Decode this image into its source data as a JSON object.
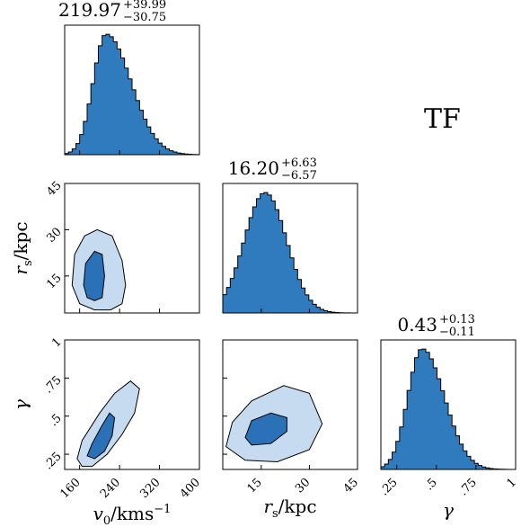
{
  "chart_data": {
    "type": "corner",
    "fill_color": "#2f7bbd",
    "contour_colors": {
      "inner": "#2b71b7",
      "outer": "#c6dbef",
      "line": "#000000"
    },
    "panel_label": "TF",
    "parameters": [
      {
        "key": "v0",
        "label_main": "v",
        "label_sub": "0",
        "label_rest": "/kms",
        "label_sup": "−1",
        "range": [
          130,
          400
        ],
        "ticks": [
          160,
          240,
          320,
          400
        ],
        "tick_labels": [
          "160",
          "240",
          "320",
          "400"
        ]
      },
      {
        "key": "rs",
        "label_main": "r",
        "label_sub": "s",
        "label_rest": "/kpc",
        "range": [
          3,
          45
        ],
        "ticks": [
          15,
          30,
          45
        ],
        "tick_labels": [
          "15",
          "30",
          "45"
        ]
      },
      {
        "key": "gamma",
        "label_main": "γ",
        "range": [
          0.15,
          1.0
        ],
        "ticks": [
          0.25,
          0.5,
          0.75,
          1.0
        ],
        "tick_labels": [
          ".25",
          ".5",
          ".75",
          "1"
        ]
      }
    ],
    "titles": [
      {
        "value": "219.97",
        "plus": "+39.99",
        "minus": "−30.75"
      },
      {
        "value": "16.20",
        "plus": "+6.63",
        "minus": "−6.57"
      },
      {
        "value": "0.43",
        "plus": "+0.13",
        "minus": "−0.11"
      }
    ],
    "histograms": [
      {
        "param": "v0",
        "mode": 213,
        "sigma_left": 26,
        "sigma_right": 50,
        "bins": 36
      },
      {
        "param": "rs",
        "mode": 16.2,
        "sigma_left": 6.5,
        "sigma_right": 6.7,
        "bins": 36
      },
      {
        "param": "gamma",
        "mode": 0.41,
        "sigma_left": 0.09,
        "sigma_right": 0.14,
        "bins": 36
      }
    ],
    "contours_2d": [
      {
        "x": "v0",
        "y": "rs",
        "outer": [
          [
            145,
            12
          ],
          [
            150,
            22
          ],
          [
            170,
            28
          ],
          [
            195,
            30
          ],
          [
            225,
            28
          ],
          [
            245,
            20
          ],
          [
            252,
            12
          ],
          [
            245,
            6
          ],
          [
            222,
            4
          ],
          [
            190,
            4
          ],
          [
            160,
            6
          ]
        ],
        "inner": [
          [
            168,
            12
          ],
          [
            172,
            19
          ],
          [
            190,
            23
          ],
          [
            205,
            22
          ],
          [
            210,
            15
          ],
          [
            205,
            8
          ],
          [
            190,
            7
          ],
          [
            175,
            8
          ]
        ]
      },
      {
        "x": "v0",
        "y": "gamma",
        "outer": [
          [
            155,
            0.22
          ],
          [
            165,
            0.34
          ],
          [
            200,
            0.52
          ],
          [
            230,
            0.65
          ],
          [
            262,
            0.73
          ],
          [
            280,
            0.68
          ],
          [
            270,
            0.52
          ],
          [
            245,
            0.38
          ],
          [
            215,
            0.25
          ],
          [
            185,
            0.17
          ],
          [
            165,
            0.17
          ]
        ],
        "inner": [
          [
            175,
            0.24
          ],
          [
            185,
            0.32
          ],
          [
            205,
            0.44
          ],
          [
            220,
            0.52
          ],
          [
            230,
            0.49
          ],
          [
            225,
            0.37
          ],
          [
            210,
            0.27
          ],
          [
            190,
            0.22
          ]
        ]
      },
      {
        "x": "rs",
        "y": "gamma",
        "outer": [
          [
            4,
            0.3
          ],
          [
            6,
            0.46
          ],
          [
            12,
            0.6
          ],
          [
            22,
            0.7
          ],
          [
            30,
            0.65
          ],
          [
            34,
            0.45
          ],
          [
            30,
            0.28
          ],
          [
            20,
            0.2
          ],
          [
            10,
            0.21
          ]
        ],
        "inner": [
          [
            10,
            0.36
          ],
          [
            12,
            0.47
          ],
          [
            18,
            0.52
          ],
          [
            23,
            0.49
          ],
          [
            23,
            0.4
          ],
          [
            18,
            0.32
          ],
          [
            12,
            0.31
          ]
        ]
      }
    ]
  }
}
